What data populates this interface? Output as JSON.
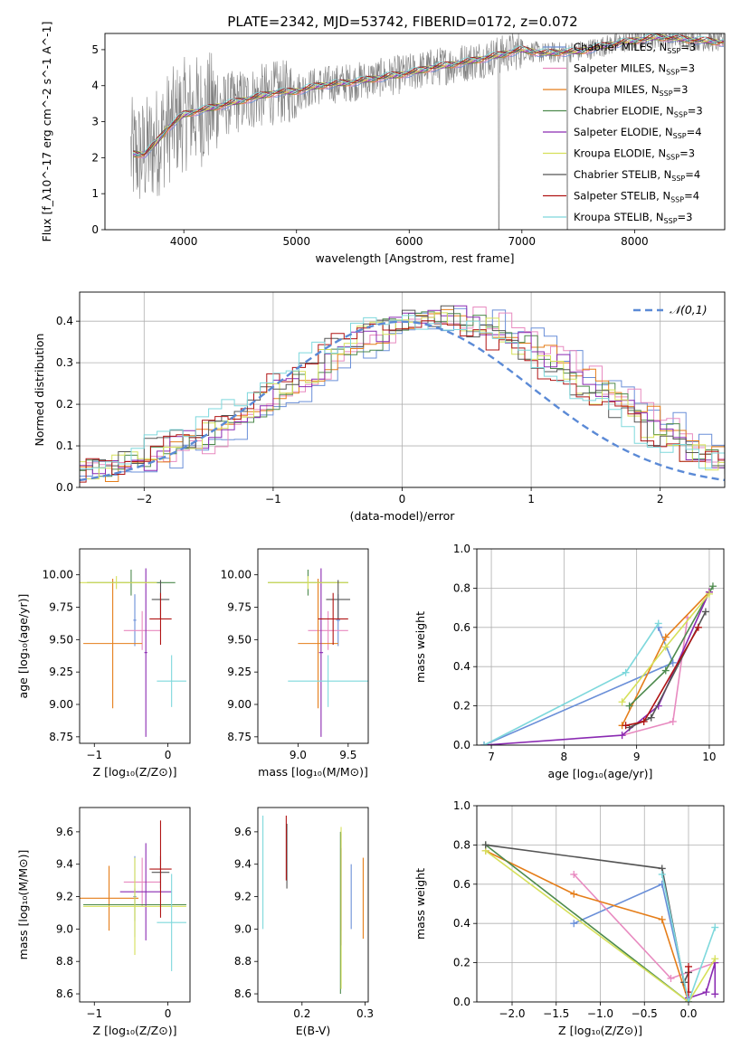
{
  "page_title": "PLATE=2342, MJD=53742, FIBERID=0172, z=0.072",
  "colors": {
    "Chabrier MILES": "#6a8fd8",
    "Salpeter MILES": "#e88ac0",
    "Kroupa MILES": "#e57e1a",
    "Chabrier ELODIE": "#4d8a4d",
    "Salpeter ELODIE": "#8a2ab2",
    "Kroupa ELODIE": "#d6e05a",
    "Chabrier STELIB": "#555555",
    "Salpeter STELIB": "#b01414",
    "Kroupa STELIB": "#7ed8dc"
  },
  "chart_data": [
    {
      "id": "spectrum",
      "type": "line",
      "title": "PLATE=2342, MJD=53742, FIBERID=0172, z=0.072",
      "xlabel": "wavelength [Angstrom, rest frame]",
      "ylabel": "Flux [f_λ10^-17 erg cm^-2 s^-1 A^-1]",
      "xlim": [
        3300,
        8800
      ],
      "ylim": [
        0,
        5.45
      ],
      "xticks": [
        4000,
        5000,
        6000,
        7000,
        8000
      ],
      "yticks": [
        0,
        1,
        2,
        3,
        4,
        5
      ],
      "grid": false,
      "legend_position": "right",
      "legend": [
        "Chabrier MILES, N_SSP=3",
        "Salpeter MILES, N_SSP=3",
        "Kroupa MILES, N_SSP=3",
        "Chabrier ELODIE, N_SSP=3",
        "Salpeter ELODIE, N_SSP=4",
        "Kroupa ELODIE, N_SSP=3",
        "Chabrier STELIB, N_SSP=4",
        "Salpeter STELIB, N_SSP=4",
        "Kroupa STELIB, N_SSP=3"
      ],
      "continuum": {
        "x": [
          3550,
          3650,
          3750,
          3850,
          4000,
          4200,
          4400,
          4600,
          4800,
          5000,
          5200,
          5500,
          5800,
          6000,
          6200,
          6500,
          6800,
          7000,
          7200,
          7500,
          7800,
          8000,
          8200,
          8400,
          8600,
          8800
        ],
        "y": [
          2.1,
          2.1,
          2.4,
          2.8,
          3.2,
          3.35,
          3.5,
          3.65,
          3.8,
          3.85,
          4.0,
          4.1,
          4.25,
          4.35,
          4.5,
          4.65,
          4.85,
          5.0,
          4.9,
          4.95,
          5.15,
          5.25,
          5.35,
          5.3,
          5.25,
          5.2
        ]
      }
    },
    {
      "id": "residuals",
      "type": "line",
      "xlabel": "(data-model)/error",
      "ylabel": "Normed distribution",
      "xlim": [
        -2.5,
        2.5
      ],
      "ylim": [
        0,
        0.47
      ],
      "xticks": [
        -2,
        -1,
        0,
        1,
        2
      ],
      "yticks": [
        0.0,
        0.1,
        0.2,
        0.3,
        0.4
      ],
      "grid": true,
      "legend_position": "top-right",
      "legend": [
        "𝒩(0,1)"
      ],
      "bin_width": 0.1,
      "base_heights": [
        0.05,
        0.06,
        0.05,
        0.04,
        0.04,
        0.05,
        0.06,
        0.07,
        0.09,
        0.1,
        0.11,
        0.12,
        0.14,
        0.16,
        0.18,
        0.19,
        0.21,
        0.23,
        0.25,
        0.27,
        0.28,
        0.31,
        0.33,
        0.35,
        0.36,
        0.38,
        0.39,
        0.39,
        0.4,
        0.41,
        0.4,
        0.41,
        0.4,
        0.39,
        0.38,
        0.36,
        0.35,
        0.33,
        0.31,
        0.29,
        0.27,
        0.25,
        0.23,
        0.21,
        0.19,
        0.17,
        0.15,
        0.13,
        0.11,
        0.09,
        0.08,
        0.07,
        0.06,
        0.06,
        0.05,
        0.04,
        0.04,
        0.04,
        0.03,
        0.03,
        0.03
      ]
    },
    {
      "id": "age_vs_Z",
      "type": "scatter",
      "xlabel": "Z [log10(Z/Z⊙)]",
      "ylabel": "age [log10(age/yr)]",
      "xlim": [
        -1.2,
        0.3
      ],
      "ylim": [
        8.7,
        10.2
      ],
      "xticks": [
        -1,
        0
      ],
      "yticks": [
        8.75,
        9.0,
        9.25,
        9.5,
        9.75,
        10.0
      ],
      "grid": false,
      "points": [
        {
          "series": "Chabrier MILES",
          "x": -0.45,
          "y": 9.65,
          "xerr": 0.02,
          "yerr": 0.2
        },
        {
          "series": "Salpeter MILES",
          "x": -0.35,
          "y": 9.57,
          "xerr": 0.25,
          "yerr": 0.15
        },
        {
          "series": "Kroupa MILES",
          "x": -0.75,
          "y": 9.47,
          "xerr": 0.4,
          "yerr": 0.5
        },
        {
          "series": "Chabrier ELODIE",
          "x": -0.5,
          "y": 9.94,
          "xerr": 0.6,
          "yerr": 0.1
        },
        {
          "series": "Salpeter ELODIE",
          "x": -0.3,
          "y": 9.4,
          "xerr": 0.02,
          "yerr": 0.65
        },
        {
          "series": "Kroupa ELODIE",
          "x": -0.7,
          "y": 9.94,
          "xerr": 0.55,
          "yerr": 0.05
        },
        {
          "series": "Chabrier STELIB",
          "x": -0.1,
          "y": 9.81,
          "xerr": 0.12,
          "yerr": 0.15
        },
        {
          "series": "Salpeter STELIB",
          "x": -0.1,
          "y": 9.66,
          "xerr": 0.15,
          "yerr": 0.2
        },
        {
          "series": "Kroupa STELIB",
          "x": 0.05,
          "y": 9.18,
          "xerr": 0.2,
          "yerr": 0.2
        }
      ]
    },
    {
      "id": "age_vs_mass",
      "type": "scatter",
      "xlabel": "mass [log10(M/M⊙)]",
      "ylabel": "",
      "xlim": [
        8.6,
        9.7
      ],
      "ylim": [
        8.7,
        10.2
      ],
      "xticks": [
        9.0,
        9.5
      ],
      "yticks": [
        8.75,
        9.0,
        9.25,
        9.5,
        9.75,
        10.0
      ],
      "grid": false,
      "points": [
        {
          "series": "Chabrier MILES",
          "x": 9.4,
          "y": 9.65,
          "xerr": 0.02,
          "yerr": 0.2
        },
        {
          "series": "Salpeter MILES",
          "x": 9.3,
          "y": 9.57,
          "xerr": 0.2,
          "yerr": 0.15
        },
        {
          "series": "Kroupa MILES",
          "x": 9.2,
          "y": 9.47,
          "xerr": 0.2,
          "yerr": 0.5
        },
        {
          "series": "Chabrier ELODIE",
          "x": 9.1,
          "y": 9.94,
          "xerr": 0.4,
          "yerr": 0.1
        },
        {
          "series": "Salpeter ELODIE",
          "x": 9.23,
          "y": 9.4,
          "xerr": 0.02,
          "yerr": 0.65
        },
        {
          "series": "Kroupa ELODIE",
          "x": 9.1,
          "y": 9.94,
          "xerr": 0.4,
          "yerr": 0.05
        },
        {
          "series": "Chabrier STELIB",
          "x": 9.4,
          "y": 9.81,
          "xerr": 0.12,
          "yerr": 0.15
        },
        {
          "series": "Salpeter STELIB",
          "x": 9.35,
          "y": 9.66,
          "xerr": 0.15,
          "yerr": 0.2
        },
        {
          "series": "Kroupa STELIB",
          "x": 9.3,
          "y": 9.18,
          "xerr": 0.4,
          "yerr": 0.2
        }
      ]
    },
    {
      "id": "mass_weight_vs_age",
      "type": "line",
      "xlabel": "age [log10(age/yr)]",
      "ylabel": "mass weight",
      "xlim": [
        6.8,
        10.2
      ],
      "ylim": [
        0,
        1.0
      ],
      "xticks": [
        7,
        8,
        9,
        10
      ],
      "yticks": [
        0.0,
        0.2,
        0.4,
        0.6,
        0.8,
        1.0
      ],
      "grid": true,
      "series": [
        {
          "name": "Chabrier MILES",
          "x": [
            6.9,
            9.5,
            9.3
          ],
          "y": [
            0.0,
            0.42,
            0.6
          ]
        },
        {
          "name": "Salpeter MILES",
          "x": [
            8.8,
            9.5,
            9.7
          ],
          "y": [
            0.05,
            0.12,
            0.65
          ]
        },
        {
          "name": "Kroupa MILES",
          "x": [
            8.8,
            9.4,
            10.0
          ],
          "y": [
            0.1,
            0.55,
            0.78
          ]
        },
        {
          "name": "Chabrier ELODIE",
          "x": [
            8.9,
            9.4,
            10.05
          ],
          "y": [
            0.2,
            0.38,
            0.81
          ]
        },
        {
          "name": "Salpeter ELODIE",
          "x": [
            6.9,
            8.8,
            9.3,
            10.0
          ],
          "y": [
            0.0,
            0.05,
            0.2,
            0.78
          ]
        },
        {
          "name": "Kroupa ELODIE",
          "x": [
            8.8,
            9.4,
            10.0
          ],
          "y": [
            0.22,
            0.5,
            0.77
          ]
        },
        {
          "name": "Chabrier STELIB",
          "x": [
            8.9,
            9.2,
            9.95
          ],
          "y": [
            0.09,
            0.14,
            0.68
          ]
        },
        {
          "name": "Salpeter STELIB",
          "x": [
            8.85,
            9.1,
            9.85
          ],
          "y": [
            0.1,
            0.12,
            0.6
          ]
        },
        {
          "name": "Kroupa STELIB",
          "x": [
            6.9,
            8.85,
            9.3
          ],
          "y": [
            0.0,
            0.37,
            0.62
          ]
        }
      ]
    },
    {
      "id": "mass_vs_Z",
      "type": "scatter",
      "xlabel": "Z [log10(Z/Z⊙)]",
      "ylabel": "mass [log10(M/M⊙)]",
      "xlim": [
        -1.2,
        0.3
      ],
      "ylim": [
        8.55,
        9.75
      ],
      "xticks": [
        -1,
        0
      ],
      "yticks": [
        8.6,
        8.8,
        9.0,
        9.2,
        9.4,
        9.6
      ],
      "grid": false,
      "points": [
        {
          "series": "Chabrier MILES",
          "x": -0.45,
          "y": 9.2,
          "xerr": 0.02,
          "yerr": 0.25
        },
        {
          "series": "Salpeter MILES",
          "x": -0.35,
          "y": 9.29,
          "xerr": 0.25,
          "yerr": 0.15
        },
        {
          "series": "Kroupa MILES",
          "x": -0.8,
          "y": 9.19,
          "xerr": 0.4,
          "yerr": 0.2
        },
        {
          "series": "Chabrier ELODIE",
          "x": -0.45,
          "y": 9.15,
          "xerr": 0.7,
          "yerr": 0.1
        },
        {
          "series": "Salpeter ELODIE",
          "x": -0.3,
          "y": 9.23,
          "xerr": 0.35,
          "yerr": 0.3
        },
        {
          "series": "Kroupa ELODIE",
          "x": -0.45,
          "y": 9.14,
          "xerr": 0.7,
          "yerr": 0.3
        },
        {
          "series": "Chabrier STELIB",
          "x": -0.1,
          "y": 9.35,
          "xerr": 0.12,
          "yerr": 0.1
        },
        {
          "series": "Salpeter STELIB",
          "x": -0.1,
          "y": 9.37,
          "xerr": 0.15,
          "yerr": 0.3
        },
        {
          "series": "Kroupa STELIB",
          "x": 0.05,
          "y": 9.04,
          "xerr": 0.2,
          "yerr": 0.3
        }
      ]
    },
    {
      "id": "mass_vs_EBV",
      "type": "scatter",
      "xlabel": "E(B-V)",
      "ylabel": "",
      "xlim": [
        0.13,
        0.305
      ],
      "ylim": [
        8.55,
        9.75
      ],
      "xticks": [
        0.2,
        0.3
      ],
      "yticks": [
        8.6,
        8.8,
        9.0,
        9.2,
        9.4,
        9.6
      ],
      "grid": false,
      "points": [
        {
          "series": "Chabrier MILES",
          "x": 0.278,
          "y": 9.2,
          "yerr": 0.2
        },
        {
          "series": "Salpeter MILES",
          "x": 0.262,
          "y": 9.29,
          "yerr": 0.3
        },
        {
          "series": "Kroupa MILES",
          "x": 0.297,
          "y": 9.19,
          "yerr": 0.25
        },
        {
          "series": "Chabrier ELODIE",
          "x": 0.261,
          "y": 9.1,
          "yerr": 0.5
        },
        {
          "series": "Salpeter ELODIE",
          "x": 0.262,
          "y": 9.2,
          "yerr": 0.3
        },
        {
          "series": "Kroupa ELODIE",
          "x": 0.262,
          "y": 9.13,
          "yerr": 0.5
        },
        {
          "series": "Chabrier STELIB",
          "x": 0.176,
          "y": 9.45,
          "yerr": 0.2
        },
        {
          "series": "Salpeter STELIB",
          "x": 0.175,
          "y": 9.5,
          "yerr": 0.2
        },
        {
          "series": "Kroupa STELIB",
          "x": 0.138,
          "y": 9.35,
          "yerr": 0.35
        }
      ]
    },
    {
      "id": "mass_weight_vs_Z",
      "type": "line",
      "xlabel": "Z [log10(Z/Z⊙)]",
      "ylabel": "mass weight",
      "xlim": [
        -2.4,
        0.4
      ],
      "ylim": [
        0,
        1.0
      ],
      "xticks": [
        -2.0,
        -1.5,
        -1.0,
        -0.5,
        0.0
      ],
      "yticks": [
        0.0,
        0.2,
        0.4,
        0.6,
        0.8,
        1.0
      ],
      "grid": true,
      "series": [
        {
          "name": "Chabrier MILES",
          "x": [
            -1.3,
            -0.3,
            0.0
          ],
          "y": [
            0.4,
            0.6,
            0.0
          ]
        },
        {
          "name": "Salpeter MILES",
          "x": [
            -1.3,
            -0.2,
            0.3
          ],
          "y": [
            0.65,
            0.12,
            0.2
          ]
        },
        {
          "name": "Kroupa MILES",
          "x": [
            -2.3,
            -1.3,
            -0.3,
            0.0
          ],
          "y": [
            0.77,
            0.55,
            0.42,
            0.0
          ]
        },
        {
          "name": "Chabrier ELODIE",
          "x": [
            -2.3,
            0.0
          ],
          "y": [
            0.8,
            0.0
          ]
        },
        {
          "name": "Salpeter ELODIE",
          "x": [
            0.0,
            0.2,
            0.3,
            0.3
          ],
          "y": [
            0.02,
            0.05,
            0.2,
            0.04
          ]
        },
        {
          "name": "Kroupa ELODIE",
          "x": [
            -2.3,
            0.0,
            0.3
          ],
          "y": [
            0.77,
            0.0,
            0.22
          ]
        },
        {
          "name": "Chabrier STELIB",
          "x": [
            -2.3,
            -0.3,
            -0.05,
            0.0
          ],
          "y": [
            0.8,
            0.68,
            0.1,
            0.15
          ]
        },
        {
          "name": "Salpeter STELIB",
          "x": [
            0.0,
            0.0
          ],
          "y": [
            0.18,
            0.05
          ]
        },
        {
          "name": "Kroupa STELIB",
          "x": [
            -0.3,
            0.0,
            0.3
          ],
          "y": [
            0.65,
            0.0,
            0.38
          ]
        }
      ]
    }
  ]
}
